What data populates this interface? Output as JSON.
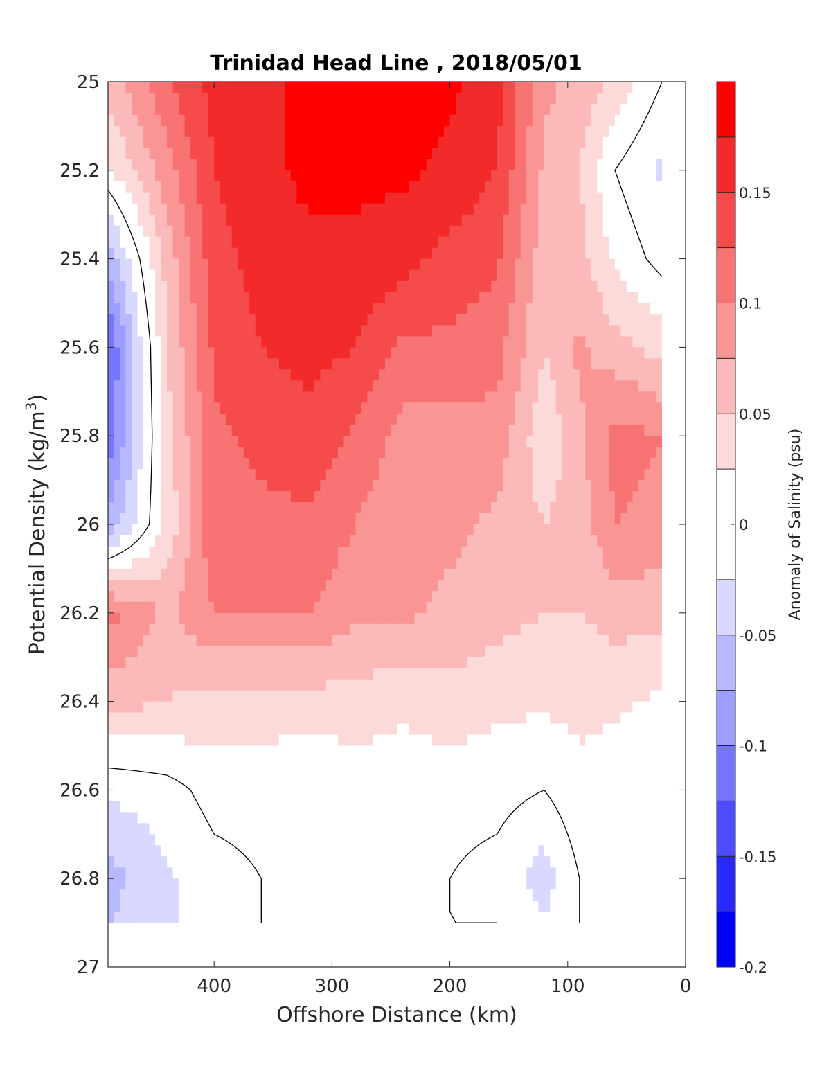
{
  "chart_data": {
    "type": "heatmap",
    "subtype": "filled-contour",
    "title": "Trinidad Head Line , 2018/05/01",
    "xlabel": "Offshore Distance (km)",
    "ylabel": "Potential Density (kg/m",
    "ylabel_sup": "3",
    "ylabel_end": ")",
    "x_reversed": true,
    "y_reversed": true,
    "xlim": [
      490,
      0
    ],
    "ylim": [
      25,
      27
    ],
    "x_ticks": [
      400,
      300,
      200,
      100,
      0
    ],
    "y_ticks": [
      25,
      25.2,
      25.4,
      25.6,
      25.8,
      26,
      26.2,
      26.4,
      26.6,
      26.8,
      27
    ],
    "x_tick_labels": [
      "400",
      "300",
      "200",
      "100",
      "0"
    ],
    "y_tick_labels": [
      "25",
      "25.2",
      "25.4",
      "25.6",
      "25.8",
      "26",
      "26.2",
      "26.4",
      "26.6",
      "26.8",
      "27"
    ],
    "data_extent": {
      "x": [
        490,
        20
      ],
      "y": [
        25,
        26.9
      ]
    },
    "colorbar": {
      "label": "Anomaly of Salinity (psu)",
      "range": [
        -0.2,
        0.2
      ],
      "levels": [
        -0.2,
        -0.175,
        -0.15,
        -0.125,
        -0.1,
        -0.075,
        -0.05,
        -0.025,
        0.025,
        0.05,
        0.075,
        0.1,
        0.125,
        0.15,
        0.175,
        0.2
      ],
      "tick_values": [
        -0.2,
        -0.15,
        -0.1,
        -0.05,
        0,
        0.05,
        0.1,
        0.15
      ],
      "tick_labels": [
        "-0.2",
        "-0.15",
        "-0.1",
        "-0.05",
        "0",
        "0.05",
        "0.1",
        "0.15"
      ],
      "colors": [
        "#0000ff",
        "#2828ff",
        "#4d4dff",
        "#7575ff",
        "#9d9dff",
        "#b8b8ff",
        "#d9d9ff",
        "#ffffff",
        "#fddada",
        "#fbb9b9",
        "#fa9595",
        "#f87373",
        "#f54b4b",
        "#f32a2a",
        "#ff0000"
      ]
    },
    "zero_contour_color": "#000000",
    "grid": {
      "x": [
        490,
        440,
        400,
        360,
        320,
        280,
        240,
        200,
        160,
        120,
        90,
        60,
        20
      ],
      "y": [
        25,
        25.2,
        25.4,
        25.6,
        25.8,
        26,
        26.2,
        26.4,
        26.6,
        26.8,
        26.9
      ]
    },
    "z": [
      [
        0.06,
        0.12,
        0.16,
        0.17,
        0.18,
        0.18,
        0.18,
        0.18,
        0.16,
        0.08,
        0.07,
        0.04,
        0.0
      ],
      [
        0.02,
        0.09,
        0.15,
        0.17,
        0.18,
        0.18,
        0.18,
        0.17,
        0.15,
        0.07,
        0.05,
        0.0,
        -0.03
      ],
      [
        -0.07,
        0.06,
        0.14,
        0.16,
        0.17,
        0.17,
        0.16,
        0.14,
        0.13,
        0.06,
        0.06,
        0.02,
        -0.01
      ],
      [
        -0.13,
        0.05,
        0.13,
        0.15,
        0.16,
        0.15,
        0.12,
        0.12,
        0.11,
        0.05,
        0.08,
        0.06,
        0.04
      ],
      [
        -0.12,
        0.04,
        0.12,
        0.13,
        0.14,
        0.12,
        0.09,
        0.09,
        0.09,
        0.03,
        0.07,
        0.11,
        0.1
      ],
      [
        -0.07,
        0.03,
        0.12,
        0.12,
        0.12,
        0.1,
        0.08,
        0.08,
        0.07,
        0.05,
        0.06,
        0.1,
        0.09
      ],
      [
        0.11,
        0.07,
        0.1,
        0.1,
        0.1,
        0.08,
        0.08,
        0.07,
        0.06,
        0.05,
        0.05,
        0.06,
        0.06
      ],
      [
        0.06,
        0.05,
        0.04,
        0.04,
        0.04,
        0.04,
        0.03,
        0.04,
        0.03,
        0.03,
        0.03,
        0.03,
        0.02
      ],
      [
        -0.02,
        -0.01,
        0.01,
        0.01,
        0.0,
        0.01,
        0.01,
        0.01,
        0.01,
        0.0,
        0.02,
        0.01,
        0.0
      ],
      [
        -0.06,
        -0.03,
        -0.01,
        0.0,
        0.0,
        0.0,
        0.0,
        0.0,
        -0.01,
        -0.04,
        0.0,
        0.0,
        0.0
      ],
      [
        -0.05,
        -0.03,
        -0.01,
        0.0,
        0.0,
        0.0,
        0.0,
        0.0,
        0.0,
        -0.02,
        0.0,
        0.01,
        0.0
      ]
    ]
  }
}
